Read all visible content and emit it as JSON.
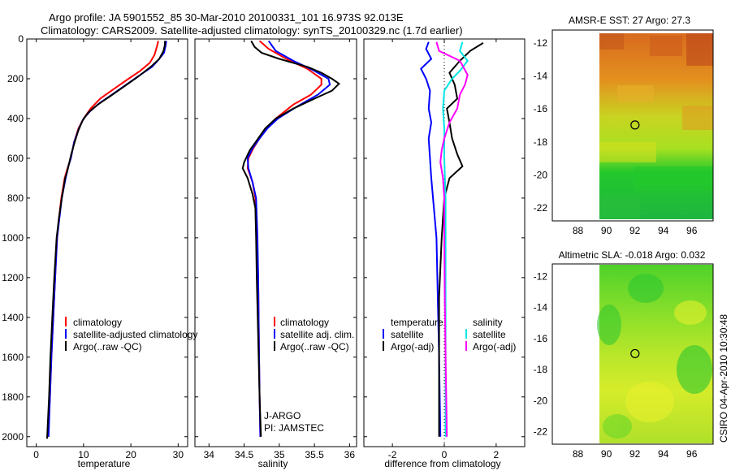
{
  "header": {
    "line1": "Argo profile: JA 5901552_85 30-Mar-2010 20100331_101 16.973S 92.013E",
    "line2": "Climatology: CARS2009. Satellite-adjusted climatology: synTS_20100329.nc (1.7d earlier)"
  },
  "side_label": "CSIRO 04-Apr-2010 10:30:48",
  "colors": {
    "climatology": "#ff0000",
    "satellite": "#0000ff",
    "argo": "#000000",
    "salinity_sat": "#00e5e5",
    "salinity_argo": "#ff00ff"
  },
  "chart_data": [
    {
      "id": "temperature",
      "type": "line",
      "xlabel": "temperature",
      "ylabel": "",
      "xlim": [
        -2,
        32
      ],
      "ylim": [
        2050,
        0
      ],
      "xticks": [
        0,
        10,
        20,
        30
      ],
      "yticks": [
        0,
        200,
        400,
        600,
        800,
        1000,
        1200,
        1400,
        1600,
        1800,
        2000
      ],
      "legend": [
        "climatology",
        "satellite-adjusted climatology",
        "Argo(..raw -QC)"
      ],
      "series": [
        {
          "name": "climatology",
          "color": "red",
          "points": [
            [
              25.8,
              10
            ],
            [
              25.5,
              40
            ],
            [
              25.0,
              80
            ],
            [
              24.0,
              120
            ],
            [
              22.0,
              160
            ],
            [
              19.5,
              200
            ],
            [
              16.5,
              250
            ],
            [
              13.5,
              300
            ],
            [
              11.5,
              350
            ],
            [
              10.0,
              400
            ],
            [
              8.9,
              450
            ],
            [
              8.0,
              520
            ],
            [
              7.3,
              600
            ],
            [
              6.6,
              650
            ],
            [
              6.0,
              700
            ],
            [
              5.3,
              800
            ],
            [
              4.8,
              900
            ],
            [
              4.4,
              1000
            ],
            [
              4.0,
              1200
            ],
            [
              3.6,
              1400
            ],
            [
              3.2,
              1600
            ],
            [
              2.9,
              1800
            ],
            [
              2.5,
              2000
            ]
          ]
        },
        {
          "name": "satellite",
          "color": "blue",
          "points": [
            [
              27.5,
              10
            ],
            [
              27.3,
              40
            ],
            [
              27.0,
              70
            ],
            [
              26.0,
              100
            ],
            [
              24.5,
              140
            ],
            [
              22.0,
              180
            ],
            [
              19.0,
              230
            ],
            [
              16.0,
              280
            ],
            [
              13.5,
              320
            ],
            [
              11.5,
              360
            ],
            [
              10.0,
              400
            ],
            [
              9.0,
              450
            ],
            [
              8.0,
              520
            ],
            [
              7.3,
              600
            ],
            [
              6.8,
              640
            ],
            [
              6.2,
              700
            ],
            [
              5.4,
              800
            ],
            [
              4.9,
              900
            ],
            [
              4.4,
              1000
            ],
            [
              4.0,
              1200
            ],
            [
              3.6,
              1400
            ],
            [
              3.2,
              1600
            ],
            [
              2.9,
              1800
            ],
            [
              2.6,
              2000
            ]
          ]
        },
        {
          "name": "argo",
          "color": "black",
          "points": [
            [
              27.2,
              10
            ],
            [
              27.2,
              30
            ],
            [
              26.9,
              60
            ],
            [
              26.0,
              100
            ],
            [
              24.2,
              140
            ],
            [
              21.5,
              190
            ],
            [
              18.5,
              240
            ],
            [
              15.5,
              290
            ],
            [
              13.0,
              330
            ],
            [
              11.0,
              370
            ],
            [
              9.8,
              410
            ],
            [
              8.9,
              460
            ],
            [
              8.1,
              520
            ],
            [
              7.4,
              580
            ],
            [
              7.0,
              620
            ],
            [
              6.6,
              660
            ],
            [
              6.1,
              700
            ],
            [
              5.4,
              800
            ],
            [
              4.8,
              900
            ],
            [
              4.3,
              1000
            ],
            [
              3.8,
              1200
            ],
            [
              3.4,
              1400
            ],
            [
              3.0,
              1600
            ],
            [
              2.7,
              1800
            ],
            [
              2.3,
              2010
            ]
          ]
        }
      ]
    },
    {
      "id": "salinity",
      "type": "line",
      "xlabel": "salinity",
      "xlim": [
        33.8,
        36.1
      ],
      "ylim": [
        2050,
        0
      ],
      "xticks": [
        34,
        34.5,
        35,
        35.5,
        36
      ],
      "legend": [
        "climatology",
        "satellite adj. clim.",
        "Argo(..raw -QC)"
      ],
      "notes": [
        "J-ARGO",
        "PI: JAMSTEC"
      ],
      "series": [
        {
          "name": "climatology",
          "color": "red",
          "points": [
            [
              34.72,
              10
            ],
            [
              34.85,
              50
            ],
            [
              35.1,
              100
            ],
            [
              35.4,
              150
            ],
            [
              35.6,
              200
            ],
            [
              35.6,
              230
            ],
            [
              35.45,
              280
            ],
            [
              35.2,
              330
            ],
            [
              34.95,
              400
            ],
            [
              34.82,
              450
            ],
            [
              34.72,
              500
            ],
            [
              34.63,
              550
            ],
            [
              34.56,
              600
            ],
            [
              34.55,
              650
            ],
            [
              34.62,
              720
            ],
            [
              34.66,
              800
            ],
            [
              34.68,
              1000
            ],
            [
              34.7,
              1200
            ],
            [
              34.71,
              1500
            ],
            [
              34.72,
              1800
            ],
            [
              34.73,
              2000
            ]
          ]
        },
        {
          "name": "satellite",
          "color": "blue",
          "points": [
            [
              34.85,
              10
            ],
            [
              34.95,
              60
            ],
            [
              35.2,
              110
            ],
            [
              35.5,
              160
            ],
            [
              35.7,
              200
            ],
            [
              35.72,
              230
            ],
            [
              35.55,
              280
            ],
            [
              35.25,
              340
            ],
            [
              34.98,
              400
            ],
            [
              34.83,
              450
            ],
            [
              34.72,
              500
            ],
            [
              34.62,
              550
            ],
            [
              34.55,
              600
            ],
            [
              34.56,
              650
            ],
            [
              34.62,
              720
            ],
            [
              34.67,
              800
            ],
            [
              34.69,
              1000
            ],
            [
              34.7,
              1200
            ],
            [
              34.71,
              1500
            ],
            [
              34.72,
              1800
            ],
            [
              34.73,
              2000
            ]
          ]
        },
        {
          "name": "argo",
          "color": "black",
          "points": [
            [
              34.6,
              10
            ],
            [
              34.65,
              40
            ],
            [
              34.75,
              70
            ],
            [
              35.0,
              100
            ],
            [
              35.2,
              120
            ],
            [
              35.4,
              140
            ],
            [
              35.6,
              170
            ],
            [
              35.75,
              200
            ],
            [
              35.85,
              225
            ],
            [
              35.75,
              260
            ],
            [
              35.5,
              300
            ],
            [
              35.2,
              350
            ],
            [
              34.95,
              400
            ],
            [
              34.8,
              450
            ],
            [
              34.7,
              500
            ],
            [
              34.58,
              560
            ],
            [
              34.5,
              620
            ],
            [
              34.48,
              650
            ],
            [
              34.55,
              700
            ],
            [
              34.62,
              780
            ],
            [
              34.66,
              850
            ],
            [
              34.67,
              1000
            ],
            [
              34.68,
              1200
            ],
            [
              34.7,
              1500
            ],
            [
              34.72,
              1800
            ],
            [
              34.74,
              2000
            ]
          ]
        }
      ]
    },
    {
      "id": "difference",
      "type": "line",
      "xlabel": "difference from climatology",
      "xlim": [
        -3.1,
        3.1
      ],
      "ylim": [
        2050,
        0
      ],
      "xticks": [
        -2,
        0,
        2
      ],
      "legend_temperature": [
        "temperature",
        "satellite",
        "Argo(-adj)"
      ],
      "legend_salinity": [
        "salinity",
        "satellite",
        "Argo(-adj)"
      ],
      "series": [
        {
          "name": "temperature satellite",
          "color": "blue",
          "points": [
            [
              -0.6,
              15
            ],
            [
              -0.7,
              50
            ],
            [
              -0.5,
              100
            ],
            [
              -0.9,
              150
            ],
            [
              -0.7,
              200
            ],
            [
              -0.55,
              260
            ],
            [
              -0.6,
              350
            ],
            [
              -0.5,
              420
            ],
            [
              -0.6,
              500
            ],
            [
              -0.55,
              600
            ],
            [
              -0.5,
              700
            ],
            [
              -0.4,
              850
            ],
            [
              -0.3,
              1000
            ],
            [
              -0.25,
              1300
            ],
            [
              -0.2,
              1600
            ],
            [
              -0.15,
              2000
            ]
          ]
        },
        {
          "name": "temperature argo",
          "color": "black",
          "points": [
            [
              1.5,
              20
            ],
            [
              1.0,
              60
            ],
            [
              0.6,
              110
            ],
            [
              0.2,
              170
            ],
            [
              0.4,
              230
            ],
            [
              0.5,
              300
            ],
            [
              0.1,
              350
            ],
            [
              0.2,
              420
            ],
            [
              0.3,
              500
            ],
            [
              0.5,
              580
            ],
            [
              0.7,
              640
            ],
            [
              0.2,
              700
            ],
            [
              0.0,
              800
            ],
            [
              -0.1,
              1000
            ],
            [
              -0.2,
              1300
            ],
            [
              -0.2,
              1600
            ],
            [
              -0.2,
              2000
            ]
          ]
        },
        {
          "name": "salinity satellite",
          "color": "cyan",
          "points": [
            [
              0.7,
              15
            ],
            [
              0.6,
              60
            ],
            [
              0.9,
              110
            ],
            [
              0.6,
              160
            ],
            [
              0.3,
              200
            ],
            [
              0.0,
              260
            ],
            [
              -0.05,
              350
            ],
            [
              0.0,
              450
            ],
            [
              0.0,
              600
            ],
            [
              0.05,
              800
            ],
            [
              0.05,
              1000
            ],
            [
              0.05,
              1300
            ],
            [
              0.05,
              1600
            ],
            [
              0.05,
              2000
            ]
          ]
        },
        {
          "name": "salinity argo",
          "color": "magenta",
          "points": [
            [
              -0.3,
              15
            ],
            [
              -0.2,
              60
            ],
            [
              0.6,
              110
            ],
            [
              0.9,
              180
            ],
            [
              0.8,
              230
            ],
            [
              0.6,
              280
            ],
            [
              0.5,
              350
            ],
            [
              0.2,
              420
            ],
            [
              0.0,
              500
            ],
            [
              -0.1,
              560
            ],
            [
              -0.15,
              620
            ],
            [
              -0.05,
              700
            ],
            [
              0.0,
              800
            ],
            [
              0.0,
              1000
            ],
            [
              0.02,
              1300
            ],
            [
              0.05,
              1600
            ],
            [
              0.1,
              2000
            ]
          ]
        }
      ]
    },
    {
      "id": "sst_map",
      "type": "heatmap",
      "title": "AMSR-E SST: 27 Argo: 27.3",
      "xlim": [
        86.2,
        97.5
      ],
      "ylim": [
        -22.8,
        -11.2
      ],
      "xticks": [
        88,
        90,
        92,
        94,
        96
      ],
      "yticks": [
        -12,
        -14,
        -16,
        -18,
        -20,
        -22
      ],
      "data_xrange": [
        89.9,
        97.5
      ],
      "argo_position": [
        92.01,
        -16.97
      ]
    },
    {
      "id": "sla_map",
      "type": "heatmap",
      "title": "Altimetric SLA: -0.018 Argo: 0.032",
      "xlim": [
        86.2,
        97.5
      ],
      "ylim": [
        -22.8,
        -11.2
      ],
      "xticks": [
        88,
        90,
        92,
        94,
        96
      ],
      "yticks": [
        -12,
        -14,
        -16,
        -18,
        -20,
        -22
      ],
      "data_xrange": [
        89.9,
        97.5
      ],
      "argo_position": [
        92.01,
        -16.97
      ]
    }
  ]
}
